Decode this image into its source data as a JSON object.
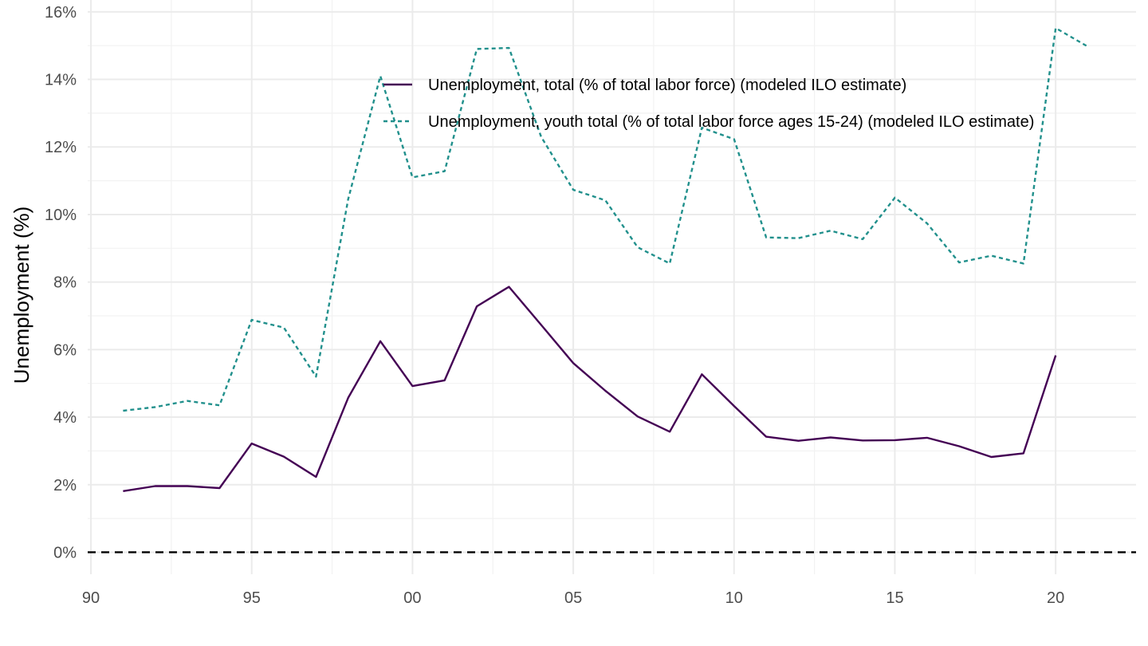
{
  "chart_data": {
    "type": "line",
    "ylabel": "Unemployment (%)",
    "xlim": [
      1989.9,
      2022.5
    ],
    "ylim": [
      -0.65,
      16.35
    ],
    "x_ticks": [
      {
        "value": 1990,
        "label": "90"
      },
      {
        "value": 1995,
        "label": "95"
      },
      {
        "value": 2000,
        "label": "00"
      },
      {
        "value": 2005,
        "label": "05"
      },
      {
        "value": 2010,
        "label": "10"
      },
      {
        "value": 2015,
        "label": "15"
      },
      {
        "value": 2020,
        "label": "20"
      }
    ],
    "y_ticks": [
      {
        "value": 0,
        "label": "0%"
      },
      {
        "value": 2,
        "label": "2%"
      },
      {
        "value": 4,
        "label": "4%"
      },
      {
        "value": 6,
        "label": "6%"
      },
      {
        "value": 8,
        "label": "8%"
      },
      {
        "value": 10,
        "label": "10%"
      },
      {
        "value": 12,
        "label": "12%"
      },
      {
        "value": 14,
        "label": "14%"
      },
      {
        "value": 16,
        "label": "16%"
      }
    ],
    "grid": true,
    "reference_line": {
      "y": 0,
      "style": "dashed",
      "color": "#000000"
    },
    "legend_position": "top-center",
    "series": [
      {
        "name": "Unemployment, total (% of total labor force) (modeled ILO estimate)",
        "color": "#440154",
        "style": "solid",
        "x": [
          1991,
          1992,
          1993,
          1994,
          1995,
          1996,
          1997,
          1998,
          1999,
          2000,
          2001,
          2002,
          2003,
          2004,
          2005,
          2006,
          2007,
          2008,
          2009,
          2010,
          2011,
          2012,
          2013,
          2014,
          2015,
          2016,
          2017,
          2018,
          2019,
          2020
        ],
        "y": [
          1.81,
          1.96,
          1.96,
          1.9,
          3.22,
          2.83,
          2.23,
          4.57,
          6.25,
          4.92,
          5.09,
          7.28,
          7.86,
          6.73,
          5.6,
          4.78,
          4.02,
          3.57,
          5.27,
          4.33,
          3.42,
          3.3,
          3.4,
          3.31,
          3.32,
          3.39,
          3.14,
          2.82,
          2.93,
          5.83
        ]
      },
      {
        "name": "Unemployment, youth total (% of total labor force ages 15-24) (modeled ILO estimate)",
        "color": "#21908C",
        "style": "dotted",
        "x": [
          1991,
          1992,
          1993,
          1994,
          1995,
          1996,
          1997,
          1998,
          1999,
          2000,
          2001,
          2002,
          2003,
          2004,
          2005,
          2006,
          2007,
          2008,
          2009,
          2010,
          2011,
          2012,
          2013,
          2014,
          2015,
          2016,
          2017,
          2018,
          2019,
          2020,
          2021
        ],
        "y": [
          4.19,
          4.3,
          4.48,
          4.35,
          6.88,
          6.65,
          5.2,
          10.45,
          14.1,
          11.1,
          11.28,
          14.9,
          14.93,
          12.3,
          10.73,
          10.42,
          9.03,
          8.55,
          12.57,
          12.23,
          9.32,
          9.3,
          9.52,
          9.27,
          10.5,
          9.74,
          8.58,
          8.78,
          8.55,
          15.52,
          14.97
        ]
      }
    ]
  }
}
